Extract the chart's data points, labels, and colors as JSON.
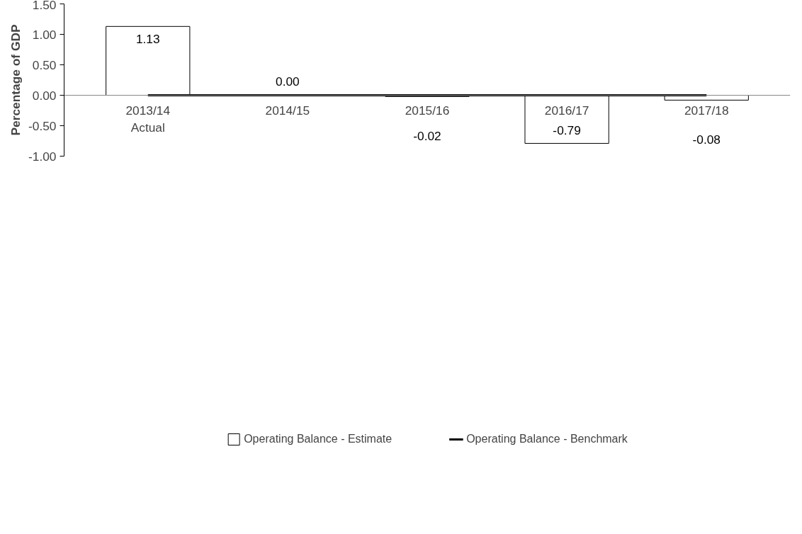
{
  "chart_data": {
    "type": "bar",
    "ylabel": "Percentage of GDP",
    "categories": [
      "2013/14\nActual",
      "2014/15",
      "2015/16",
      "2016/17",
      "2017/18"
    ],
    "series": [
      {
        "name": "Operating Balance - Estimate",
        "color": "#ffffff",
        "values": [
          1.13,
          0.0,
          -0.02,
          -0.79,
          -0.08
        ],
        "value_labels": [
          "1.13",
          "0.00",
          "-0.02",
          "-0.79",
          "-0.08"
        ]
      },
      {
        "name": "Operating Balance - Benchmark",
        "type": "line",
        "color": "#000000",
        "values": [
          0,
          0,
          0,
          0,
          0
        ]
      }
    ],
    "ylim": [
      -1.0,
      1.5
    ],
    "yticks": [
      {
        "value": -1.0,
        "label": "-1.00"
      },
      {
        "value": -0.5,
        "label": "-0.50"
      },
      {
        "value": 0,
        "label": "0.00"
      },
      {
        "value": 0.5,
        "label": "0.50"
      },
      {
        "value": 1.0,
        "label": "1.00"
      },
      {
        "value": 1.5,
        "label": "1.50"
      }
    ],
    "grid": false,
    "legend": "bottom"
  }
}
